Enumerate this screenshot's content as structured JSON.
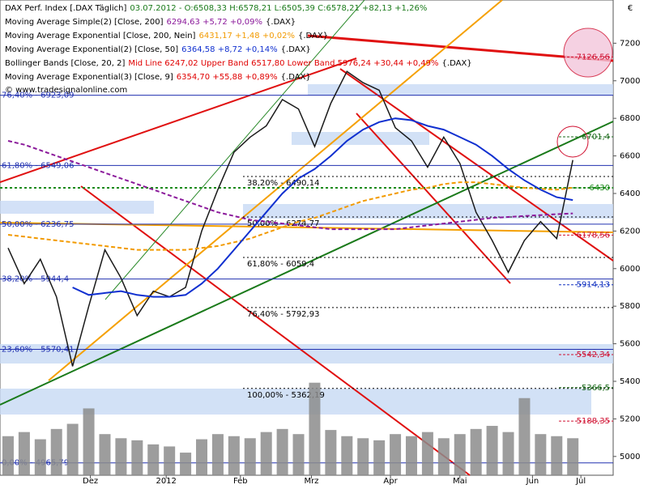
{
  "chart_data": {
    "type": "line",
    "y_unit": "€",
    "source": "{.DAX}",
    "website": "© www.tradesignalonline.com",
    "xlim": [
      0,
      38
    ],
    "xticks": [
      {
        "value": 5.6,
        "label": "Dez"
      },
      {
        "value": 10.3,
        "label": "2012"
      },
      {
        "value": 14.9,
        "label": "Feb"
      },
      {
        "value": 19.3,
        "label": "Mrz"
      },
      {
        "value": 24.2,
        "label": "Apr"
      },
      {
        "value": 28.5,
        "label": "Mai"
      },
      {
        "value": 33,
        "label": "Jun"
      },
      {
        "value": 36,
        "label": "Jul"
      }
    ],
    "ylim": [
      4900,
      7430
    ],
    "yticks": [
      5000,
      5200,
      5400,
      5600,
      5800,
      6000,
      6200,
      6400,
      6600,
      6800,
      7000,
      7200
    ],
    "y2lim": [
      0,
      100
    ],
    "x": [
      0.5,
      1.5,
      2.5,
      3.5,
      4.5,
      5.5,
      6.5,
      7.5,
      8.5,
      9.5,
      10.5,
      11.5,
      12.5,
      13.5,
      14.5,
      15.5,
      16.5,
      17.5,
      18.5,
      19.5,
      20.5,
      21.5,
      22.5,
      23.5,
      24.5,
      25.5,
      26.5,
      27.5,
      28.5,
      29.5,
      30.5,
      31.5,
      32.5,
      33.5,
      34.5,
      35.5
    ],
    "series": [
      {
        "name": "DAX Perf. Index [.DAX Täglich]",
        "legend_value": "03.07.2012 - O:6508,33 H:6578,21 L:6505,39 C:6578,21 +82,13 +1,26%",
        "color": "#1a1a1a",
        "values": [
          6110,
          5920,
          6050,
          5850,
          5480,
          5800,
          6100,
          5950,
          5750,
          5880,
          5850,
          5900,
          6200,
          6420,
          6620,
          6700,
          6760,
          6900,
          6850,
          6650,
          6880,
          7050,
          6990,
          6950,
          6750,
          6680,
          6540,
          6700,
          6560,
          6300,
          6150,
          5980,
          6150,
          6250,
          6160,
          6578
        ]
      },
      {
        "name": "Moving Average Simple(2) [Close, 200]",
        "legend_value": "6294,63 +5,72 +0,09%",
        "color": "#8b1a9b",
        "dash": true,
        "values": [
          6680,
          6660,
          6630,
          6600,
          6570,
          6540,
          6510,
          6480,
          6450,
          6420,
          6390,
          6360,
          6330,
          6300,
          6280,
          6260,
          6250,
          6240,
          6230,
          6220,
          6210,
          6210,
          6210,
          6210,
          6210,
          6220,
          6230,
          6240,
          6250,
          6260,
          6270,
          6275,
          6280,
          6285,
          6290,
          6294
        ]
      },
      {
        "name": "Moving Average Exponential [Close, 200, Nein]",
        "legend_value": "6431,17 +1,48 +0,02%",
        "color": "#f29a00",
        "dash": true,
        "values": [
          6180,
          6170,
          6160,
          6150,
          6140,
          6130,
          6120,
          6110,
          6100,
          6100,
          6100,
          6100,
          6110,
          6120,
          6140,
          6160,
          6190,
          6220,
          6250,
          6270,
          6300,
          6330,
          6360,
          6380,
          6400,
          6420,
          6430,
          6450,
          6460,
          6460,
          6450,
          6440,
          6430,
          6425,
          6420,
          6431
        ]
      },
      {
        "name": "Moving Average Exponential(2) [Close, 50]",
        "legend_value": "6364,58 +8,72 +0,14%",
        "color": "#1030d0",
        "values": [
          null,
          null,
          null,
          null,
          5900,
          5860,
          5870,
          5880,
          5860,
          5850,
          5850,
          5860,
          5920,
          6000,
          6100,
          6200,
          6300,
          6400,
          6480,
          6530,
          6600,
          6680,
          6740,
          6780,
          6800,
          6790,
          6760,
          6740,
          6700,
          6660,
          6600,
          6530,
          6470,
          6420,
          6380,
          6365
        ]
      },
      {
        "name": "Volume",
        "axis": "y2",
        "color": "#8c8c8c",
        "values": [
          38,
          42,
          35,
          45,
          50,
          65,
          40,
          36,
          34,
          30,
          28,
          22,
          35,
          40,
          38,
          36,
          42,
          45,
          40,
          90,
          44,
          38,
          36,
          34,
          40,
          38,
          42,
          36,
          40,
          45,
          48,
          42,
          75,
          40,
          38,
          36
        ]
      }
    ],
    "indicators": [
      {
        "name": "Bollinger Bands [Close, 20, 2]",
        "legend_value": "Mid Line 6247,02 Upper Band 6517,80 Lower Band 5976,24 +30,44 +0,49%",
        "color": "#e00000"
      },
      {
        "name": "Moving Average Exponential(3) [Close, 9]",
        "legend_value": "6354,70 +55,88 +0,89%",
        "color": "#e00000"
      }
    ],
    "fib_left": [
      {
        "value": 6923.09,
        "label": "76,40% - 6923,09"
      },
      {
        "value": 6549.06,
        "label": "61,80% - 6549,06"
      },
      {
        "value": 6236.75,
        "label": "50,00% - 6236,75"
      },
      {
        "value": 5944.4,
        "label": "38,20% - 5944,4"
      },
      {
        "value": 5570.41,
        "label": "23,60% - 5570,41"
      },
      {
        "value": 4965.79,
        "label": "0,00% - 4965,79"
      }
    ],
    "fib_mid": [
      {
        "value": 6490.14,
        "label": "38,20% - 6490,14"
      },
      {
        "value": 6274.77,
        "label": "50,00% - 6274,77"
      },
      {
        "value": 6059.4,
        "label": "61,80% - 6059,4"
      },
      {
        "value": 5792.93,
        "label": "76,40% - 5792,93"
      },
      {
        "value": 5362.19,
        "label": "100,00% - 5362,19"
      }
    ],
    "right_labels": [
      {
        "value": 7126.56,
        "label": "7126,56",
        "color": "#d01030"
      },
      {
        "value": 6701.4,
        "label": "6701,4",
        "color": "#1a6a1a"
      },
      {
        "value": 6430,
        "label": "6430",
        "color": "#1a8a1a"
      },
      {
        "value": 6178.56,
        "label": "6178,56",
        "color": "#d01030"
      },
      {
        "value": 5914.13,
        "label": "5914,13",
        "color": "#1030c0"
      },
      {
        "value": 5542.34,
        "label": "5542,34",
        "color": "#d01030"
      },
      {
        "value": 5366.5,
        "label": "5366,5",
        "color": "#1a6a1a"
      },
      {
        "value": 5188.35,
        "label": "5188,35",
        "color": "#d01030"
      }
    ]
  }
}
